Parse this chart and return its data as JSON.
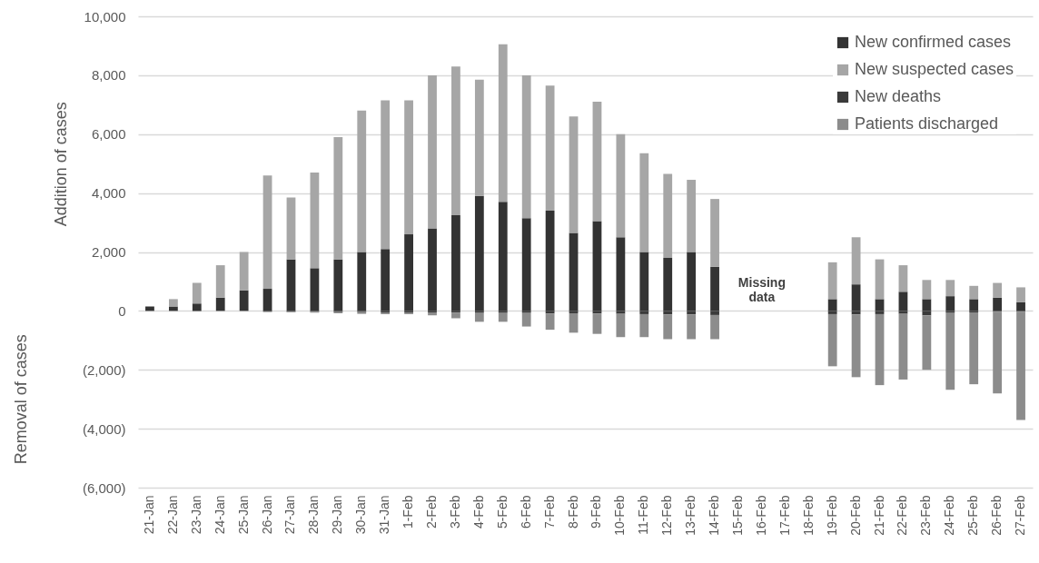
{
  "chart_data": {
    "type": "bar",
    "stacked": true,
    "ylabel": "Addition of cases",
    "categories": [
      "21-Jan",
      "22-Jan",
      "23-Jan",
      "24-Jan",
      "25-Jan",
      "26-Jan",
      "27-Jan",
      "28-Jan",
      "29-Jan",
      "30-Jan",
      "31-Jan",
      "1-Feb",
      "2-Feb",
      "3-Feb",
      "4-Feb",
      "5-Feb",
      "6-Feb",
      "7-Feb",
      "8-Feb",
      "9-Feb",
      "10-Feb",
      "11-Feb",
      "12-Feb",
      "13-Feb",
      "14-Feb",
      "15-Feb",
      "16-Feb",
      "17-Feb",
      "18-Feb",
      "19-Feb",
      "20-Feb",
      "21-Feb",
      "22-Feb",
      "23-Feb",
      "24-Feb",
      "25-Feb",
      "26-Feb",
      "27-Feb"
    ],
    "series": [
      {
        "name": "New confirmed cases",
        "color": "#333333",
        "values": [
          150,
          150,
          250,
          450,
          700,
          750,
          1750,
          1450,
          1750,
          2000,
          2100,
          2600,
          2800,
          3250,
          3900,
          3700,
          3150,
          3400,
          2650,
          3050,
          2500,
          2000,
          1800,
          2000,
          1500,
          null,
          null,
          null,
          null,
          400,
          900,
          400,
          650,
          400,
          500,
          400,
          450,
          300
        ]
      },
      {
        "name": "New suspected cases",
        "color": "#a6a6a6",
        "values": [
          0,
          250,
          700,
          1100,
          1300,
          3850,
          2100,
          3250,
          4150,
          4800,
          5050,
          4550,
          5200,
          5050,
          3950,
          5350,
          4850,
          4250,
          3950,
          4050,
          3500,
          3350,
          2850,
          2450,
          2300,
          null,
          null,
          null,
          null,
          1250,
          1600,
          1350,
          900,
          650,
          550,
          450,
          500,
          500
        ]
      },
      {
        "name": "New deaths",
        "color": "#3a3a3a",
        "values": [
          0,
          0,
          0,
          0,
          0,
          -20,
          -30,
          -30,
          -40,
          -40,
          -50,
          -50,
          -50,
          -60,
          -70,
          -70,
          -70,
          -90,
          -80,
          -90,
          -100,
          -110,
          -120,
          -120,
          -140,
          null,
          null,
          null,
          null,
          -110,
          -120,
          -110,
          -100,
          -150,
          -70,
          -50,
          -30,
          -30
        ]
      },
      {
        "name": "Patients discharged",
        "color": "#8c8c8c",
        "values": [
          0,
          0,
          0,
          0,
          0,
          -20,
          -20,
          -30,
          -40,
          -60,
          -60,
          -60,
          -100,
          -190,
          -300,
          -300,
          -460,
          -550,
          -660,
          -690,
          -790,
          -780,
          -840,
          -840,
          -820,
          null,
          null,
          null,
          null,
          -1770,
          -2130,
          -2410,
          -2230,
          -1850,
          -2610,
          -2440,
          -2770,
          -3670
        ]
      }
    ],
    "ylim": [
      -6000,
      10000
    ],
    "yticks": [
      {
        "value": -6000,
        "label": "(6,000)"
      },
      {
        "value": -4000,
        "label": "(4,000)"
      },
      {
        "value": -2000,
        "label": "(2,000)"
      },
      0,
      {
        "value": 2000,
        "label": "2,000"
      },
      {
        "value": 4000,
        "label": "4,000"
      },
      {
        "value": 6000,
        "label": "6,000"
      },
      {
        "value": 8000,
        "label": "8,000"
      },
      {
        "value": 10000,
        "label": "10,000"
      }
    ],
    "grid": "y",
    "legend": "top right",
    "annotations": [
      "Missing data",
      "Removal of cases"
    ]
  }
}
